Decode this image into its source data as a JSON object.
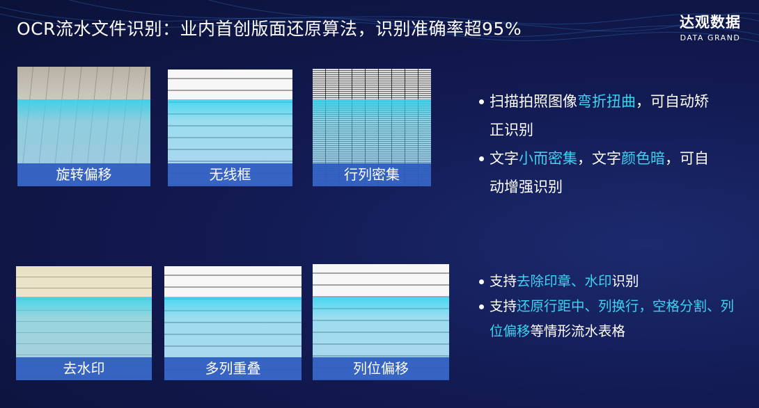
{
  "title": "OCR流水文件识别：业内首创版面还原算法，识别准确率超95%",
  "logo": {
    "cn": "达观数据",
    "en": "DATA GRAND"
  },
  "colors": {
    "highlight": "#3ed2f0",
    "background": "#121a52",
    "label_bar": "#2d5abe"
  },
  "thumbnails": [
    {
      "label": "旋转偏移"
    },
    {
      "label": "无线框"
    },
    {
      "label": "行列密集"
    },
    {
      "label": "去水印"
    },
    {
      "label": "多列重叠"
    },
    {
      "label": "列位偏移"
    }
  ],
  "bullets_top": [
    [
      {
        "t": "扫描拍照图像",
        "h": false
      },
      {
        "t": "弯折扭曲",
        "h": true
      },
      {
        "t": "，可自动矫正识别",
        "h": false
      }
    ],
    [
      {
        "t": "文字",
        "h": false
      },
      {
        "t": "小而密集",
        "h": true
      },
      {
        "t": "，文字",
        "h": false
      },
      {
        "t": "颜色暗",
        "h": true
      },
      {
        "t": "，可自动增强识别",
        "h": false
      }
    ]
  ],
  "bullets_bottom": [
    [
      {
        "t": "支持",
        "h": false
      },
      {
        "t": "去除印章、水印",
        "h": true
      },
      {
        "t": "识别",
        "h": false
      }
    ],
    [
      {
        "t": "支持",
        "h": false
      },
      {
        "t": "还原行距中、列换行，空格分割、列位偏移",
        "h": true
      },
      {
        "t": "等情形流水表格",
        "h": false
      }
    ]
  ]
}
